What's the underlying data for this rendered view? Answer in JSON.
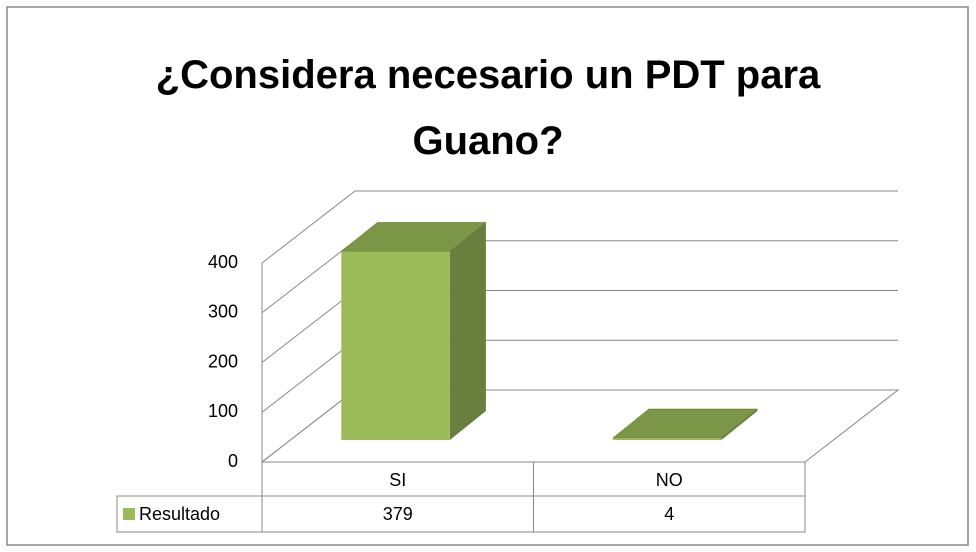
{
  "chart_data": {
    "type": "bar3d",
    "title": "¿Considera necesario un PDT para Guano?",
    "categories": [
      "SI",
      "NO"
    ],
    "series": [
      {
        "name": "Resultado",
        "color": "#9bbb59",
        "values": [
          379,
          4
        ]
      }
    ],
    "ylim": [
      0,
      400
    ],
    "yticks": [
      0,
      100,
      200,
      300,
      400
    ],
    "grid": true,
    "data_table": true
  }
}
